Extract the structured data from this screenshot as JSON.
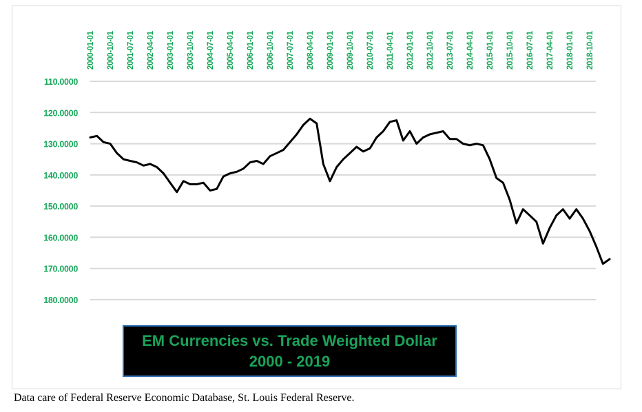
{
  "caption": "Data care of Federal Reserve Economic Database, St. Louis Federal Reserve.",
  "colors": {
    "label_green": "#17a85a",
    "title_green": "#1aa35a",
    "line": "#000000",
    "grid": "#d9d9d9",
    "title_bg": "#000000",
    "title_border": "#2f6fb5"
  },
  "chart_data": {
    "type": "line",
    "title": "EM Currencies vs. Trade Weighted Dollar",
    "subtitle": "2000 - 2019",
    "xlabel": "",
    "ylabel": "",
    "ylim": [
      110,
      180
    ],
    "y_inverted": true,
    "y_ticks": [
      "110.0000",
      "120.0000",
      "130.0000",
      "140.0000",
      "150.0000",
      "160.0000",
      "170.0000",
      "180.0000"
    ],
    "x_ticks": [
      "2000-01-01",
      "2000-10-01",
      "2001-07-01",
      "2002-04-01",
      "2003-01-01",
      "2003-10-01",
      "2004-07-01",
      "2005-04-01",
      "2006-01-01",
      "2006-10-01",
      "2007-07-01",
      "2008-04-01",
      "2009-01-01",
      "2009-10-01",
      "2010-07-01",
      "2011-04-01",
      "2012-01-01",
      "2012-10-01",
      "2013-07-01",
      "2014-04-01",
      "2015-01-01",
      "2015-10-01",
      "2016-07-01",
      "2017-04-01",
      "2018-01-01",
      "2018-10-01"
    ],
    "x_tick_position": "top",
    "grid": true,
    "legend": "none",
    "series": [
      {
        "x": [
          "2000-01",
          "2000-04",
          "2000-07",
          "2000-10",
          "2001-01",
          "2001-04",
          "2001-07",
          "2001-10",
          "2002-01",
          "2002-04",
          "2002-07",
          "2002-10",
          "2003-01",
          "2003-04",
          "2003-07",
          "2003-10",
          "2004-01",
          "2004-04",
          "2004-07",
          "2004-10",
          "2005-01",
          "2005-04",
          "2005-07",
          "2005-10",
          "2006-01",
          "2006-04",
          "2006-07",
          "2006-10",
          "2007-01",
          "2007-04",
          "2007-07",
          "2007-10",
          "2008-01",
          "2008-04",
          "2008-07",
          "2008-10",
          "2009-01",
          "2009-04",
          "2009-07",
          "2009-10",
          "2010-01",
          "2010-04",
          "2010-07",
          "2010-10",
          "2011-01",
          "2011-04",
          "2011-07",
          "2011-10",
          "2012-01",
          "2012-04",
          "2012-07",
          "2012-10",
          "2013-01",
          "2013-04",
          "2013-07",
          "2013-10",
          "2014-01",
          "2014-04",
          "2014-07",
          "2014-10",
          "2015-01",
          "2015-04",
          "2015-07",
          "2015-10",
          "2016-01",
          "2016-04",
          "2016-07",
          "2016-10",
          "2017-01",
          "2017-04",
          "2017-07",
          "2017-10",
          "2018-01",
          "2018-04",
          "2018-07",
          "2018-10",
          "2019-01",
          "2019-04",
          "2019-07"
        ],
        "values": [
          128.0,
          127.5,
          129.5,
          130.0,
          133.0,
          135.0,
          135.5,
          136.0,
          137.0,
          136.5,
          137.5,
          139.5,
          142.5,
          145.5,
          142.0,
          143.0,
          143.0,
          142.5,
          145.0,
          144.5,
          140.5,
          139.5,
          139.0,
          138.0,
          136.0,
          135.5,
          136.5,
          134.0,
          133.0,
          132.0,
          129.5,
          127.0,
          124.0,
          122.0,
          123.5,
          136.5,
          142.0,
          137.5,
          135.0,
          133.0,
          131.0,
          132.5,
          131.5,
          128.0,
          126.0,
          123.0,
          122.5,
          129.0,
          126.0,
          130.0,
          128.0,
          127.0,
          126.5,
          126.0,
          128.5,
          128.5,
          130.0,
          130.5,
          130.0,
          130.5,
          135.0,
          141.0,
          142.5,
          148.0,
          155.5,
          151.0,
          153.0,
          155.0,
          162.0,
          157.0,
          153.0,
          151.0,
          154.0,
          151.0,
          154.0,
          158.0,
          163.0,
          168.5,
          167.0
        ]
      }
    ]
  }
}
